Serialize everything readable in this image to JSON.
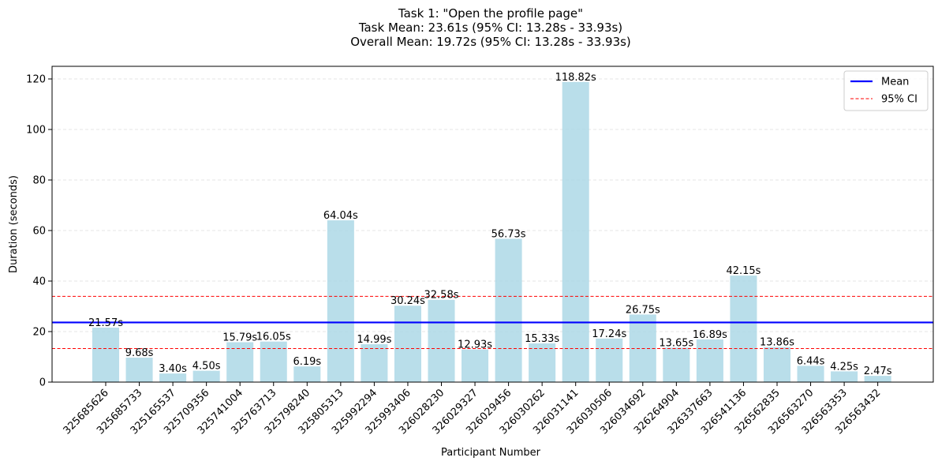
{
  "chart_data": {
    "type": "bar",
    "title_lines": [
      "Task 1: \"Open the profile page\"",
      "Task Mean: 23.61s (95% CI: 13.28s - 33.93s)",
      "Overall Mean: 19.72s (95% CI: 13.28s - 33.93s)"
    ],
    "xlabel": "Participant Number",
    "ylabel": "Duration (seconds)",
    "ylim": [
      0,
      125
    ],
    "yticks": [
      0,
      20,
      40,
      60,
      80,
      100,
      120
    ],
    "grid": "y-dashed",
    "categories": [
      "325685626",
      "325685733",
      "325165537",
      "325709356",
      "325741004",
      "325763713",
      "325798240",
      "325805313",
      "325992294",
      "325993406",
      "326028230",
      "326029327",
      "326029456",
      "326030262",
      "326031141",
      "326030506",
      "326034692",
      "326264904",
      "326337663",
      "326541136",
      "326562835",
      "326563270",
      "326563353",
      "326563432"
    ],
    "values": [
      21.57,
      9.68,
      3.4,
      4.5,
      15.79,
      16.05,
      6.19,
      64.04,
      14.99,
      30.24,
      32.58,
      12.93,
      56.73,
      15.33,
      118.82,
      17.24,
      26.75,
      13.65,
      16.89,
      42.15,
      13.86,
      6.44,
      4.25,
      2.47
    ],
    "value_labels": [
      "21.57s",
      "9.68s",
      "3.40s",
      "4.50s",
      "15.79s",
      "16.05s",
      "6.19s",
      "64.04s",
      "14.99s",
      "30.24s",
      "32.58s",
      "12.93s",
      "56.73s",
      "15.33s",
      "118.82s",
      "17.24s",
      "26.75s",
      "13.65s",
      "16.89s",
      "42.15s",
      "13.86s",
      "6.44s",
      "4.25s",
      "2.47s"
    ],
    "mean": 23.61,
    "ci": [
      13.28,
      33.93
    ],
    "legend": {
      "placement": "top-right",
      "entries": [
        {
          "label": "Mean",
          "style": "solid"
        },
        {
          "label": "95% CI",
          "style": "dashed"
        }
      ]
    },
    "colors": {
      "bar": "#add8e6",
      "mean": "#0000ff",
      "ci": "#ff0000"
    }
  }
}
